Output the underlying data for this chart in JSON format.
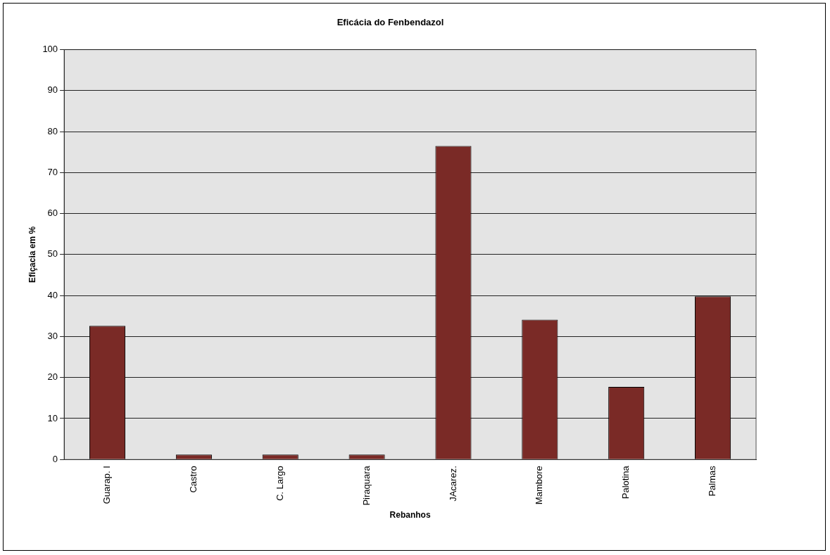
{
  "chart_data": {
    "type": "bar",
    "title": "Eficácia do Fenbendazol",
    "xlabel": "Rebanhos",
    "ylabel": "Efiçacia em %",
    "categories": [
      "Guarap. I",
      "Castro",
      "C. Largo",
      "Piraquara",
      "JAcarez.",
      "Mambore",
      "Palotina",
      "Palmas"
    ],
    "values": [
      32.6,
      1.2,
      1.2,
      1.2,
      76.5,
      34.1,
      17.7,
      39.8
    ],
    "color": "#7a2a26",
    "ylim": [
      0,
      100
    ],
    "yticks": [
      0,
      10,
      20,
      30,
      40,
      50,
      60,
      70,
      80,
      90,
      100
    ],
    "grid": "y"
  }
}
